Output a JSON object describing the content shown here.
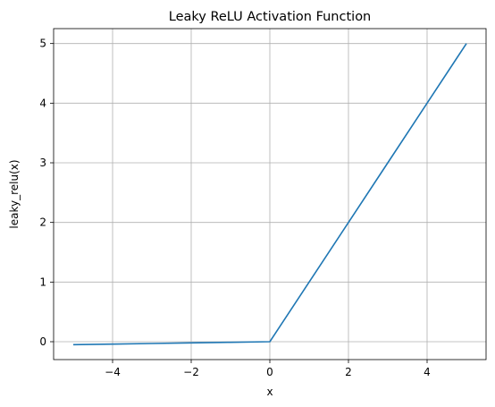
{
  "chart_data": {
    "type": "line",
    "title": "Leaky ReLU Activation Function",
    "xlabel": "x",
    "ylabel": "leaky_relu(x)",
    "xlim": [
      -5.5,
      5.5
    ],
    "ylim": [
      -0.3,
      5.25
    ],
    "xticks": [
      -4,
      -2,
      0,
      2,
      4
    ],
    "yticks": [
      0,
      1,
      2,
      3,
      4,
      5
    ],
    "xtick_labels": [
      "−4",
      "−2",
      "0",
      "2",
      "4"
    ],
    "ytick_labels": [
      "0",
      "1",
      "2",
      "3",
      "4",
      "5"
    ],
    "grid": true,
    "legend": "none",
    "series": [
      {
        "color": "#1f77b4",
        "x": [
          -5,
          -4,
          -3,
          -2,
          -1,
          0,
          0.1,
          1,
          2,
          3,
          4,
          5
        ],
        "y": [
          -0.05,
          -0.04,
          -0.03,
          -0.02,
          -0.01,
          0,
          0.1,
          1,
          2,
          3,
          4,
          5
        ]
      }
    ]
  }
}
